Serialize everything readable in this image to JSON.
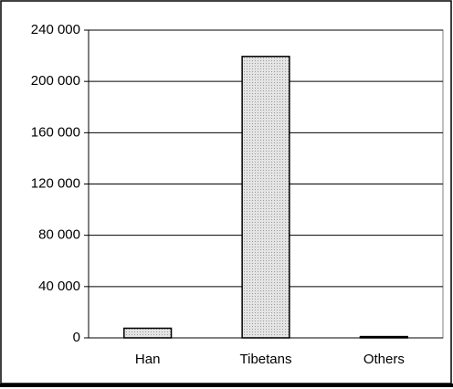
{
  "chart_data": {
    "type": "bar",
    "categories": [
      "Han",
      "Tibetans",
      "Others"
    ],
    "values": [
      7500,
      219500,
      1000
    ],
    "color": "#d9d9d9",
    "ylim": [
      0,
      240000
    ],
    "yticks": [
      0,
      {
        "value": 40000,
        "label": "40 000"
      },
      {
        "value": 80000,
        "label": "80 000"
      },
      {
        "value": 120000,
        "label": "120 000"
      },
      {
        "value": 160000,
        "label": "160 000"
      },
      {
        "value": 200000,
        "label": "200 000"
      },
      {
        "value": 240000,
        "label": "240 000"
      }
    ],
    "grid": true
  }
}
